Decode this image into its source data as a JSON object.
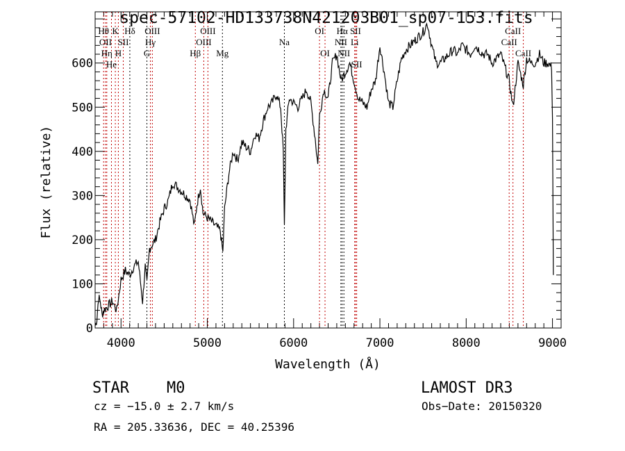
{
  "chart_data": {
    "type": "line",
    "title": "spec-57102-HD133738N421203B01_sp07-153.fits",
    "xlabel": "Wavelength (Å)",
    "ylabel": "Flux (relative)",
    "xlim": [
      3700,
      9100
    ],
    "ylim": [
      0,
      716
    ],
    "xticks": [
      4000,
      5000,
      6000,
      7000,
      8000,
      9000
    ],
    "yticks": [
      0,
      100,
      200,
      300,
      400,
      500,
      600
    ],
    "series": [
      {
        "name": "spectrum",
        "points": [
          [
            3700,
            5
          ],
          [
            3720,
            20
          ],
          [
            3740,
            70
          ],
          [
            3760,
            60
          ],
          [
            3780,
            30
          ],
          [
            3800,
            40
          ],
          [
            3850,
            50
          ],
          [
            3900,
            60
          ],
          [
            3950,
            40
          ],
          [
            4000,
            110
          ],
          [
            4050,
            130
          ],
          [
            4100,
            120
          ],
          [
            4150,
            140
          ],
          [
            4200,
            150
          ],
          [
            4250,
            60
          ],
          [
            4280,
            140
          ],
          [
            4300,
            100
          ],
          [
            4330,
            180
          ],
          [
            4400,
            200
          ],
          [
            4450,
            240
          ],
          [
            4500,
            270
          ],
          [
            4550,
            290
          ],
          [
            4600,
            330
          ],
          [
            4650,
            320
          ],
          [
            4700,
            310
          ],
          [
            4750,
            300
          ],
          [
            4800,
            290
          ],
          [
            4850,
            230
          ],
          [
            4880,
            280
          ],
          [
            4920,
            320
          ],
          [
            4950,
            260
          ],
          [
            5000,
            250
          ],
          [
            5050,
            240
          ],
          [
            5100,
            230
          ],
          [
            5150,
            220
          ],
          [
            5180,
            170
          ],
          [
            5200,
            270
          ],
          [
            5250,
            350
          ],
          [
            5300,
            400
          ],
          [
            5350,
            380
          ],
          [
            5400,
            420
          ],
          [
            5450,
            410
          ],
          [
            5500,
            400
          ],
          [
            5550,
            440
          ],
          [
            5600,
            430
          ],
          [
            5650,
            470
          ],
          [
            5700,
            500
          ],
          [
            5750,
            510
          ],
          [
            5800,
            530
          ],
          [
            5850,
            500
          ],
          [
            5880,
            400
          ],
          [
            5893,
            230
          ],
          [
            5910,
            450
          ],
          [
            5950,
            520
          ],
          [
            6000,
            510
          ],
          [
            6050,
            500
          ],
          [
            6100,
            520
          ],
          [
            6150,
            540
          ],
          [
            6200,
            510
          ],
          [
            6250,
            430
          ],
          [
            6280,
            370
          ],
          [
            6300,
            480
          ],
          [
            6350,
            540
          ],
          [
            6400,
            520
          ],
          [
            6450,
            600
          ],
          [
            6500,
            620
          ],
          [
            6550,
            560
          ],
          [
            6600,
            580
          ],
          [
            6650,
            600
          ],
          [
            6700,
            560
          ],
          [
            6750,
            520
          ],
          [
            6800,
            510
          ],
          [
            6850,
            500
          ],
          [
            6900,
            540
          ],
          [
            6950,
            560
          ],
          [
            7000,
            640
          ],
          [
            7050,
            580
          ],
          [
            7100,
            510
          ],
          [
            7150,
            500
          ],
          [
            7200,
            560
          ],
          [
            7250,
            610
          ],
          [
            7300,
            630
          ],
          [
            7350,
            640
          ],
          [
            7400,
            650
          ],
          [
            7450,
            660
          ],
          [
            7500,
            670
          ],
          [
            7550,
            690
          ],
          [
            7600,
            640
          ],
          [
            7650,
            600
          ],
          [
            7700,
            600
          ],
          [
            7750,
            610
          ],
          [
            7800,
            620
          ],
          [
            7850,
            630
          ],
          [
            7900,
            620
          ],
          [
            7950,
            640
          ],
          [
            8000,
            630
          ],
          [
            8050,
            620
          ],
          [
            8100,
            640
          ],
          [
            8150,
            630
          ],
          [
            8200,
            620
          ],
          [
            8250,
            620
          ],
          [
            8300,
            600
          ],
          [
            8350,
            610
          ],
          [
            8400,
            620
          ],
          [
            8450,
            590
          ],
          [
            8498,
            560
          ],
          [
            8542,
            500
          ],
          [
            8600,
            600
          ],
          [
            8662,
            550
          ],
          [
            8700,
            610
          ],
          [
            8750,
            600
          ],
          [
            8800,
            600
          ],
          [
            8850,
            620
          ],
          [
            8900,
            600
          ],
          [
            8950,
            600
          ],
          [
            8990,
            590
          ],
          [
            9000,
            480
          ],
          [
            9010,
            120
          ]
        ]
      }
    ],
    "lines": [
      {
        "w": 3798,
        "label": "Hθ",
        "row": 0,
        "color": "#c00000"
      },
      {
        "w": 3820,
        "label": "OII",
        "row": 1,
        "color": "#c00000"
      },
      {
        "w": 3835,
        "label": "Hη",
        "row": 2,
        "color": "#c00000"
      },
      {
        "w": 3934,
        "label": "K",
        "row": 0,
        "color": "#c00000"
      },
      {
        "w": 3889,
        "label": "He",
        "row": 1,
        "color": "#c00000"
      },
      {
        "w": 3969,
        "label": "H",
        "row": 2,
        "color": "#c00000"
      },
      {
        "w": 4026,
        "label": "SII",
        "row": 1,
        "color": "#c00000"
      },
      {
        "w": 4102,
        "label": "Hδ",
        "row": 0,
        "color": "#000000"
      },
      {
        "w": 4300,
        "label": "G",
        "row": 2,
        "color": "#000000"
      },
      {
        "w": 4340,
        "label": "Hγ",
        "row": 1,
        "color": "#c00000"
      },
      {
        "w": 4363,
        "label": "OIII",
        "row": 0,
        "color": "#c00000"
      },
      {
        "w": 4861,
        "label": "Hβ",
        "row": 2,
        "color": "#c00000"
      },
      {
        "w": 4959,
        "label": "OIII",
        "row": 1,
        "color": "#c00000"
      },
      {
        "w": 5007,
        "label": "OIII",
        "row": 0,
        "color": "#c00000"
      },
      {
        "w": 5175,
        "label": "Mg",
        "row": 2,
        "color": "#000000"
      },
      {
        "w": 5893,
        "label": "Na",
        "row": 1,
        "color": "#000000"
      },
      {
        "w": 6300,
        "label": "OI",
        "row": 0,
        "color": "#c00000"
      },
      {
        "w": 6364,
        "label": "OI",
        "row": 2,
        "color": "#c00000"
      },
      {
        "w": 6548,
        "label": "NII",
        "row": 1,
        "color": "#000000"
      },
      {
        "w": 6563,
        "label": "Hα",
        "row": 0,
        "color": "#000000"
      },
      {
        "w": 6583,
        "label": "NII",
        "row": 2,
        "color": "#000000"
      },
      {
        "w": 6708,
        "label": "Li",
        "row": 1,
        "color": "#c00000"
      },
      {
        "w": 6717,
        "label": "SII",
        "row": 0,
        "color": "#c00000"
      },
      {
        "w": 6731,
        "label": "SII",
        "row": 2,
        "color": "#c00000"
      },
      {
        "w": 8498,
        "label": "CaII",
        "row": 1,
        "color": "#c00000"
      },
      {
        "w": 8542,
        "label": "CaII",
        "row": 0,
        "color": "#c00000"
      },
      {
        "w": 8662,
        "label": "CaII",
        "row": 2,
        "color": "#c00000"
      }
    ]
  },
  "info": {
    "class": "STAR",
    "subclass": "M0",
    "survey": "LAMOST DR3",
    "cz": "cz = −15.0 ± 2.7 km/s",
    "obs_date": "Obs−Date: 20150320",
    "radec": "RA = 205.33636, DEC =  40.25396"
  }
}
